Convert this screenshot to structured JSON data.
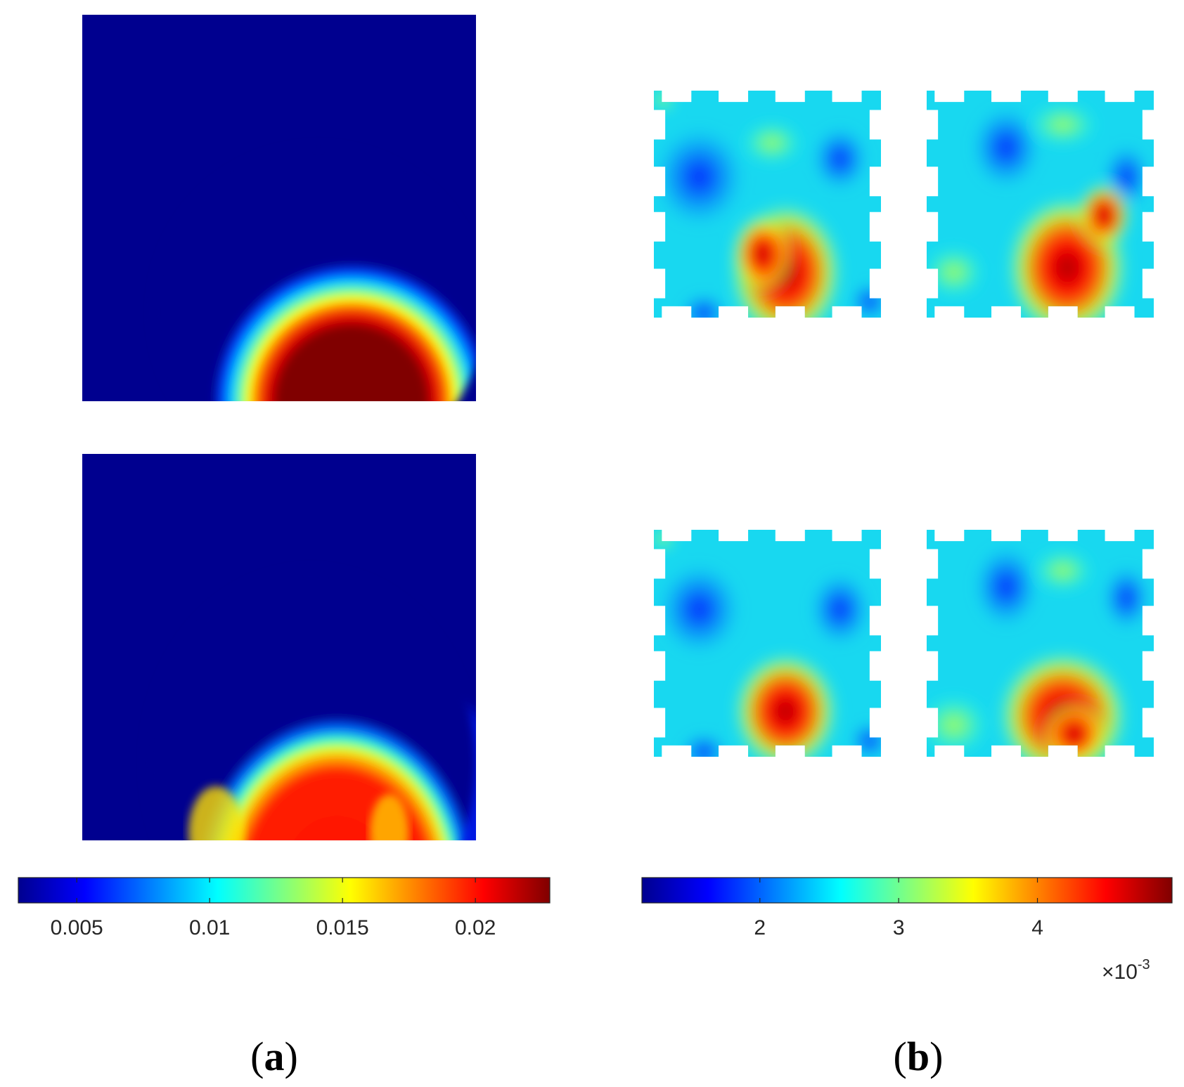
{
  "colormap": "jet",
  "panel_labels": {
    "a": "a",
    "b": "b"
  },
  "chart_data": [
    {
      "type": "heatmap",
      "panel": "a",
      "title": "",
      "colorbar": {
        "orientation": "horizontal",
        "range": [
          0.0028,
          0.0228
        ],
        "ticks": [
          0.005,
          0.01,
          0.015,
          0.02
        ],
        "tick_labels": [
          "0.005",
          "0.01",
          "0.015",
          "0.02"
        ],
        "exponent_label": ""
      },
      "maps": [
        {
          "name": "",
          "shape": "square",
          "background": 0.003,
          "features": [
            {
              "kind": "ring-disk",
              "cx": 0.6,
              "cy": 0.77,
              "inner_r": 0.23,
              "outer_r": 0.42,
              "peak": 0.0228
            }
          ]
        },
        {
          "name": "",
          "shape": "square",
          "background": 0.003,
          "features": [
            {
              "kind": "blob",
              "cx": 0.58,
              "cy": 0.8,
              "rx": 0.31,
              "ry": 0.4,
              "peak": 0.0195
            }
          ]
        }
      ]
    },
    {
      "type": "heatmap",
      "panel": "b",
      "title": "",
      "colorbar": {
        "orientation": "horizontal",
        "range": [
          0.00115,
          0.00497
        ],
        "ticks": [
          0.002,
          0.003,
          0.004
        ],
        "tick_labels": [
          "2",
          "3",
          "4"
        ],
        "exponent_label": "×10",
        "exponent_power": "-3"
      },
      "maps": [
        {
          "name": "",
          "shape": "notched-square",
          "peak": 0.0046
        },
        {
          "name": "",
          "shape": "notched-square",
          "peak": 0.0045
        },
        {
          "name": "",
          "shape": "notched-square",
          "peak": 0.0048
        },
        {
          "name": "",
          "shape": "notched-square",
          "peak": 0.0047
        }
      ]
    }
  ]
}
